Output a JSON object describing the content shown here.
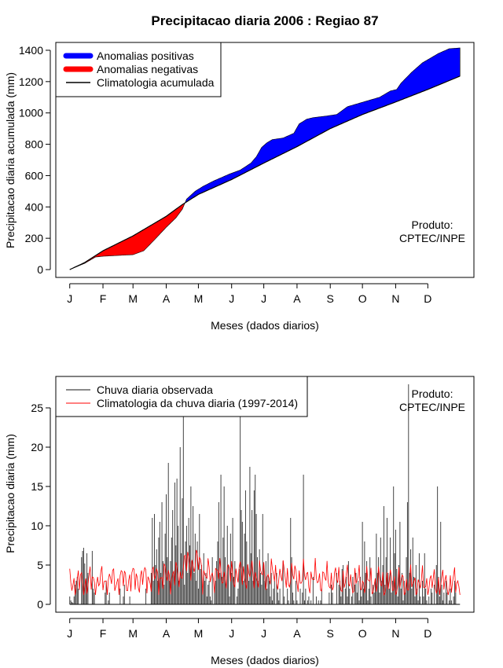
{
  "title": "Precipitacao diaria 2006 : Regiao 87",
  "colors": {
    "positive": "#0000ff",
    "negative": "#ff0000",
    "line": "#000000",
    "bars": "#444444",
    "clim": "#ff0000"
  },
  "chart_data": [
    {
      "type": "area",
      "ylabel": "Precipitacao diaria acumulada (mm)",
      "xlabel": "Meses (dados diarios)",
      "xticks": [
        {
          "label": "J",
          "day": 1
        },
        {
          "label": "F",
          "day": 32
        },
        {
          "label": "M",
          "day": 60
        },
        {
          "label": "A",
          "day": 91
        },
        {
          "label": "M",
          "day": 121
        },
        {
          "label": "J",
          "day": 152
        },
        {
          "label": "J",
          "day": 182
        },
        {
          "label": "A",
          "day": 213
        },
        {
          "label": "S",
          "day": 244
        },
        {
          "label": "O",
          "day": 274
        },
        {
          "label": "N",
          "day": 305
        },
        {
          "label": "D",
          "day": 335
        }
      ],
      "yticks": [
        0,
        200,
        400,
        600,
        800,
        1000,
        1200,
        1400
      ],
      "xlim": [
        -12,
        378
      ],
      "ylim": [
        -50,
        1450
      ],
      "product_note": [
        "Produto:",
        "CPTEC/INPE"
      ],
      "legend": {
        "positive": "Anomalias positivas",
        "negative": "Anomalias negativas",
        "climatology": "Climatologia acumulada"
      },
      "climatology_cumulative": {
        "day": [
          1,
          15,
          32,
          60,
          91,
          106,
          121,
          152,
          182,
          213,
          244,
          274,
          305,
          335,
          365
        ],
        "value": [
          0,
          45,
          120,
          215,
          340,
          415,
          480,
          575,
          680,
          785,
          900,
          990,
          1070,
          1150,
          1235
        ]
      },
      "observed_cumulative": {
        "day": [
          1,
          15,
          25,
          32,
          45,
          60,
          70,
          80,
          91,
          100,
          106,
          110,
          118,
          125,
          135,
          150,
          160,
          170,
          175,
          180,
          185,
          190,
          200,
          210,
          215,
          222,
          228,
          240,
          250,
          260,
          270,
          280,
          290,
          300,
          306,
          310,
          320,
          330,
          345,
          355,
          365
        ],
        "value": [
          0,
          40,
          80,
          85,
          90,
          95,
          120,
          190,
          270,
          330,
          385,
          450,
          500,
          530,
          565,
          610,
          635,
          680,
          720,
          780,
          810,
          830,
          840,
          870,
          930,
          960,
          970,
          980,
          990,
          1040,
          1060,
          1080,
          1100,
          1140,
          1150,
          1190,
          1260,
          1320,
          1380,
          1410,
          1415
        ]
      }
    },
    {
      "type": "bar",
      "ylabel": "Precipitacao diaria (mm)",
      "xlabel": "Meses (dados diarios)",
      "xticks": [
        {
          "label": "J",
          "day": 1
        },
        {
          "label": "F",
          "day": 32
        },
        {
          "label": "M",
          "day": 60
        },
        {
          "label": "A",
          "day": 91
        },
        {
          "label": "M",
          "day": 121
        },
        {
          "label": "J",
          "day": 152
        },
        {
          "label": "J",
          "day": 182
        },
        {
          "label": "A",
          "day": 213
        },
        {
          "label": "S",
          "day": 244
        },
        {
          "label": "O",
          "day": 274
        },
        {
          "label": "N",
          "day": 305
        },
        {
          "label": "D",
          "day": 335
        }
      ],
      "yticks": [
        0,
        5,
        10,
        15,
        20,
        25
      ],
      "xlim": [
        -12,
        378
      ],
      "ylim": [
        -1,
        29
      ],
      "product_note": [
        "Produto:",
        "CPTEC/INPE"
      ],
      "legend": {
        "observed": "Chuva diaria observada",
        "climatology": "Climatologia da chuva diaria (1997-2014)"
      },
      "observed_daily": [
        1.0,
        0.5,
        0.3,
        0.2,
        1.0,
        2.5,
        3.0,
        3.5,
        2.0,
        0.0,
        0.0,
        6.0,
        6.8,
        7.2,
        5.2,
        3.0,
        6.5,
        4.0,
        0.0,
        0.0,
        0.0,
        6.8,
        2.0,
        1.5,
        0.0,
        0.0,
        0.0,
        0.0,
        0.0,
        0.0,
        0.0,
        0.0,
        0.0,
        1.5,
        3.0,
        0.0,
        0.5,
        1.5,
        0.0,
        0.0,
        0.0,
        0.0,
        0.0,
        0.0,
        0.0,
        0.0,
        0.0,
        2.0,
        0.0,
        0.0,
        1.0,
        2.5,
        0.0,
        0.0,
        0.0,
        0.0,
        1.0,
        0.0,
        0.0,
        0.0,
        0.0,
        0.0,
        0.0,
        0.0,
        0.0,
        0.0,
        0.0,
        0.0,
        0.0,
        0.0,
        0.0,
        2.0,
        0.0,
        0.0,
        0.0,
        0.0,
        4.0,
        11.0,
        3.0,
        11.5,
        5.0,
        7.0,
        3.0,
        8.5,
        10.5,
        4.0,
        13.0,
        5.5,
        2.5,
        9.0,
        14.0,
        6.0,
        18.0,
        3.0,
        5.5,
        8.5,
        12.0,
        4.0,
        15.5,
        7.5,
        16.0,
        10.0,
        3.0,
        20.0,
        6.5,
        13.5,
        24.0,
        2.5,
        8.0,
        10.0,
        4.0,
        11.0,
        7.5,
        15.0,
        5.5,
        12.5,
        4.0,
        9.0,
        3.0,
        8.0,
        2.0,
        11.5,
        4.5,
        5.0,
        2.0,
        6.5,
        3.0,
        4.0,
        1.0,
        2.5,
        3.0,
        1.0,
        0.5,
        6.0,
        0.0,
        2.0,
        3.0,
        5.5,
        8.0,
        13.0,
        4.0,
        16.5,
        3.5,
        8.5,
        15.0,
        6.0,
        2.5,
        10.0,
        5.0,
        1.0,
        9.0,
        4.0,
        11.0,
        3.5,
        5.5,
        0.0,
        1.0,
        2.0,
        4.5,
        24.5,
        12.0,
        10.5,
        3.0,
        9.0,
        14.5,
        8.0,
        5.0,
        3.0,
        17.5,
        6.5,
        12.0,
        3.0,
        14.5,
        16.5,
        11.5,
        6.0,
        3.0,
        7.0,
        4.0,
        2.5,
        11.5,
        5.0,
        3.0,
        5.5,
        2.0,
        6.5,
        3.0,
        1.0,
        4.0,
        0.5,
        2.0,
        3.0,
        0.0,
        4.0,
        1.5,
        0.5,
        2.0,
        0.0,
        0.0,
        5.5,
        1.0,
        0.0,
        0.0,
        2.0,
        0.5,
        0.0,
        11.0,
        6.0,
        1.5,
        0.5,
        0.0,
        3.0,
        0.5,
        0.0,
        0.0,
        2.0,
        0.0,
        1.5,
        16.5,
        0.5,
        2.0,
        0.0,
        0.5,
        1.0,
        0.0,
        0.5,
        0.0,
        3.5,
        0.0,
        0.0,
        1.0,
        0.0,
        0.5,
        0.0,
        0.5,
        2.0,
        0.0,
        0.0,
        0.0,
        0.0,
        0.0,
        0.0,
        1.5,
        0.0,
        2.5,
        1.5,
        0.0,
        0.0,
        0.0,
        4.0,
        0.0,
        2.5,
        3.0,
        1.0,
        4.5,
        5.0,
        0.0,
        2.0,
        3.5,
        1.0,
        5.5,
        2.0,
        0.0,
        1.0,
        3.5,
        0.0,
        2.5,
        4.0,
        1.5,
        3.0,
        0.5,
        3.5,
        1.0,
        10.5,
        2.0,
        8.0,
        4.0,
        5.5,
        0.5,
        2.0,
        6.0,
        1.0,
        0.0,
        2.5,
        1.5,
        3.0,
        9.0,
        4.0,
        6.0,
        1.5,
        8.5,
        3.0,
        5.0,
        12.5,
        2.5,
        6.0,
        11.0,
        4.0,
        2.0,
        8.5,
        1.5,
        3.0,
        15.0,
        6.5,
        9.5,
        4.5,
        1.0,
        5.0,
        10.5,
        2.0,
        4.0,
        0.5,
        3.0,
        1.5,
        6.0,
        13.0,
        28.0,
        4.0,
        7.0,
        2.0,
        8.5,
        3.5,
        1.0,
        5.0,
        2.0,
        0.5,
        6.5,
        1.0,
        0.0,
        3.0,
        1.0,
        6.5,
        2.0,
        0.5,
        0.0,
        1.0,
        0.0,
        2.0,
        1.5,
        0.0,
        2.5,
        0.0,
        5.0,
        15.0,
        3.5,
        1.0,
        10.5,
        2.5,
        0.5,
        1.5,
        0.0,
        3.0,
        1.5,
        0.0,
        0.5,
        2.0,
        0.5,
        0.0,
        1.0,
        3.0,
        1.5
      ],
      "climatology_daily_note": "daily climatology line oscillating mostly between 2 and 7 mm"
    }
  ]
}
